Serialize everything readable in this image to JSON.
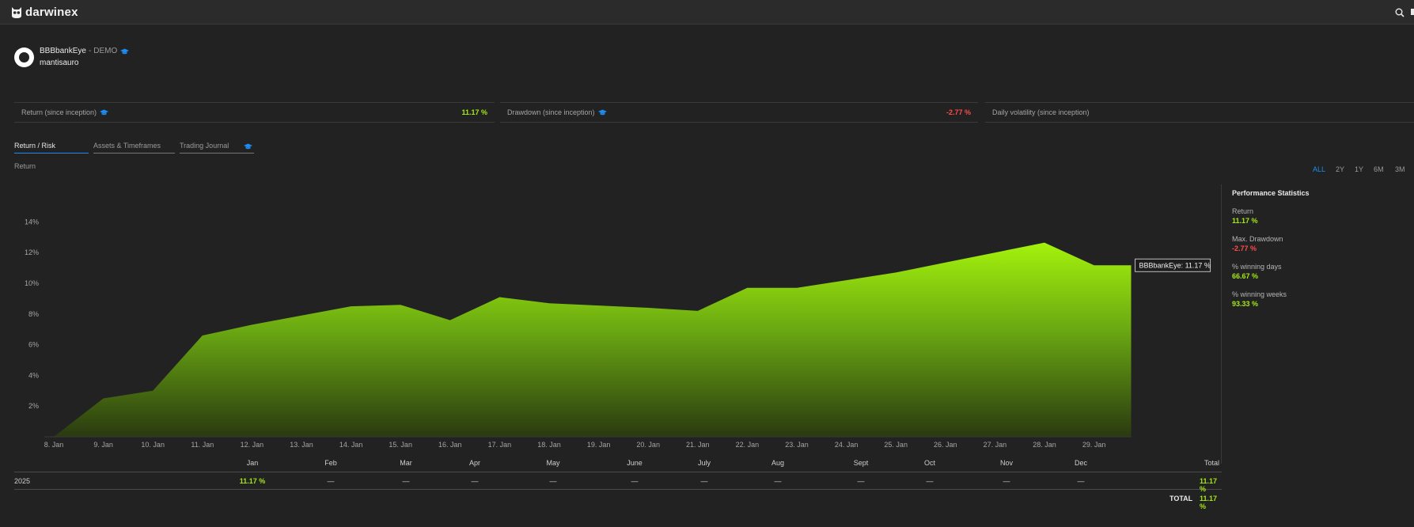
{
  "app": {
    "brand": "darwinex"
  },
  "header": {
    "name": "BBBbankEye",
    "separator": "-",
    "tag": "DEMO",
    "user": "mantisauro"
  },
  "metrics": [
    {
      "label": "Return (since inception)",
      "value": "11.17 %",
      "status": "positive"
    },
    {
      "label": "Drawdown (since inception)",
      "value": "-2.77 %",
      "status": "negative"
    },
    {
      "label": "Daily volatility (since inception)",
      "value": ""
    }
  ],
  "tabs": [
    {
      "label": "Return / Risk",
      "active": true
    },
    {
      "label": "Assets & Timeframes",
      "active": false
    },
    {
      "label": "Trading Journal",
      "active": false
    }
  ],
  "section_label": "Return",
  "ranges": [
    {
      "label": "ALL",
      "active": true
    },
    {
      "label": "2Y",
      "active": false
    },
    {
      "label": "1Y",
      "active": false
    },
    {
      "label": "6M",
      "active": false
    },
    {
      "label": "3M",
      "active": false
    }
  ],
  "tooltip": "BBBbankEye: 11.17 %",
  "chart_data": {
    "type": "area",
    "x": [
      "8. Jan",
      "9. Jan",
      "10. Jan",
      "11. Jan",
      "12. Jan",
      "13. Jan",
      "14. Jan",
      "15. Jan",
      "16. Jan",
      "17. Jan",
      "18. Jan",
      "19. Jan",
      "20. Jan",
      "21. Jan",
      "22. Jan",
      "23. Jan",
      "24. Jan",
      "25. Jan",
      "26. Jan",
      "27. Jan",
      "28. Jan",
      "29. Jan",
      "29.75 Jan"
    ],
    "x_tick_labels": [
      "8. Jan",
      "9. Jan",
      "10. Jan",
      "11. Jan",
      "12. Jan",
      "13. Jan",
      "14. Jan",
      "15. Jan",
      "16. Jan",
      "17. Jan",
      "18. Jan",
      "19. Jan",
      "20. Jan",
      "21. Jan",
      "22. Jan",
      "23. Jan",
      "24. Jan",
      "25. Jan",
      "26. Jan",
      "27. Jan",
      "28. Jan",
      "29. Jan"
    ],
    "series": [
      {
        "name": "BBBbankEye",
        "values": [
          0,
          2.5,
          3.0,
          6.6,
          7.3,
          7.9,
          8.5,
          8.6,
          7.6,
          9.1,
          8.7,
          8.55,
          8.4,
          8.2,
          9.7,
          9.7,
          10.2,
          10.7,
          11.35,
          12.0,
          12.65,
          11.17,
          11.17
        ]
      }
    ],
    "y_ticks": [
      "2%",
      "4%",
      "6%",
      "8%",
      "10%",
      "12%",
      "14%"
    ],
    "ylim": [
      0,
      14.5
    ],
    "fill_color_top": "#a4f20c",
    "fill_color_bottom": "#2a3a10"
  },
  "performance": {
    "title": "Performance Statistics",
    "stats": [
      {
        "label": "Return",
        "value": "11.17 %",
        "status": "positive"
      },
      {
        "label": "Max. Drawdown",
        "value": "-2.77 %",
        "status": "negative"
      },
      {
        "label": "% winning days",
        "value": "66.67 %",
        "status": "positive"
      },
      {
        "label": "% winning weeks",
        "value": "93.33 %",
        "status": "positive"
      }
    ]
  },
  "monthly_table": {
    "headers": [
      "Jan",
      "Feb",
      "Mar",
      "Apr",
      "May",
      "June",
      "July",
      "Aug",
      "Sept",
      "Oct",
      "Nov",
      "Dec",
      "Total"
    ],
    "rows": [
      {
        "year": "2025",
        "cells": [
          "11.17 %",
          "—",
          "—",
          "—",
          "—",
          "—",
          "—",
          "—",
          "—",
          "—",
          "—",
          "—",
          "11.17 %"
        ]
      }
    ],
    "total_label": "TOTAL",
    "total_value": "11.17 %"
  },
  "colors": {
    "accent": "#1c8cf2",
    "positive": "#a4e916",
    "negative": "#ff4b4b",
    "background": "#222222"
  }
}
